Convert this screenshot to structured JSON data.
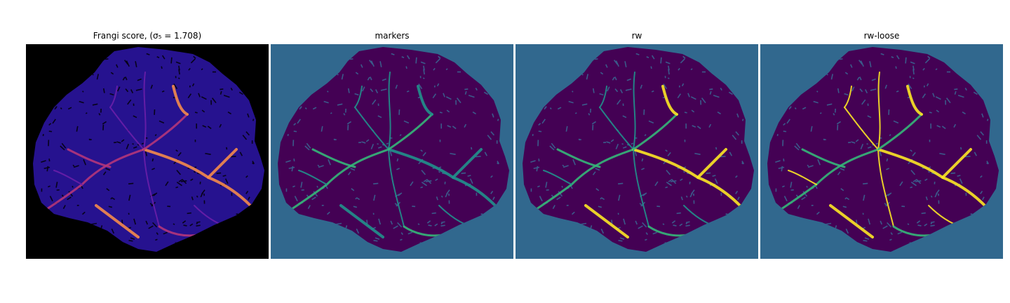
{
  "figure": {
    "panels": [
      {
        "id": "frangi",
        "title": "Frangi score, (σ₅ = 1.708)",
        "background": "#000000",
        "blob": "#26128f",
        "pore": "#07031a",
        "vessel": [
          "#6a1fa8",
          "#b5367a",
          "#f58b4b"
        ]
      },
      {
        "id": "markers",
        "title": "markers",
        "background": "#31688e",
        "blob": "#440154",
        "pore": "#3b5a8a",
        "vessel": [
          "#21918c",
          "#35b779",
          "#21918c"
        ]
      },
      {
        "id": "rw",
        "title": "rw",
        "background": "#31688e",
        "blob": "#440154",
        "pore": "#3b5a8a",
        "vessel": [
          "#21918c",
          "#35b779",
          "#fde725"
        ]
      },
      {
        "id": "rw-loose",
        "title": "rw-loose",
        "background": "#31688e",
        "blob": "#440154",
        "pore": "#3b5a8a",
        "vessel": [
          "#fde725",
          "#35b779",
          "#fde725"
        ]
      }
    ]
  }
}
